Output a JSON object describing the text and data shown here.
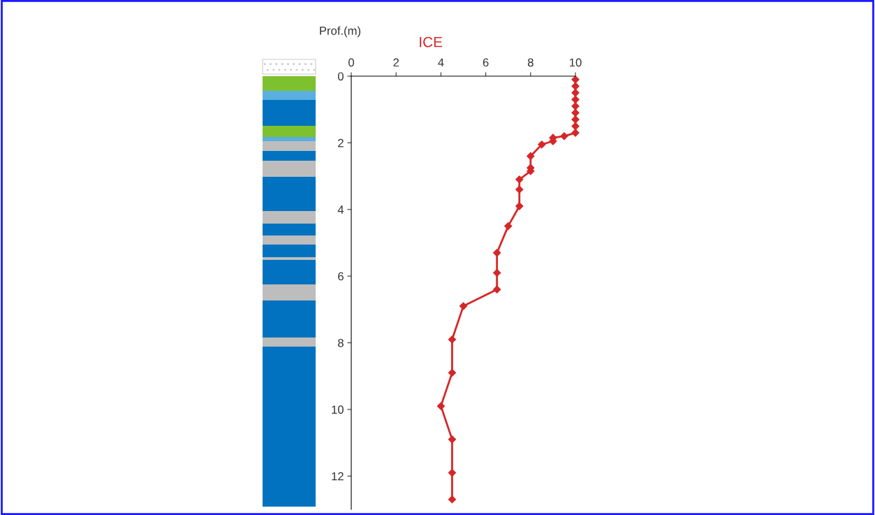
{
  "chart_data": {
    "type": "line",
    "title": "ICE",
    "ylabel": "Prof.(m)",
    "xlim": [
      0,
      10
    ],
    "xticks": [
      0,
      2,
      4,
      6,
      8,
      10
    ],
    "ylim": [
      13,
      0
    ],
    "yticks": [
      0,
      2,
      4,
      6,
      8,
      10,
      12
    ],
    "marker": "diamond",
    "line_style": "solid",
    "grid": false,
    "legend": false,
    "series": [
      {
        "color": "#d62728",
        "x": [
          10,
          10,
          10,
          10,
          10,
          10,
          10,
          10,
          10,
          9.5,
          9.0,
          9.0,
          8.5,
          8.0,
          8.0,
          8.0,
          7.5,
          7.5,
          7.5,
          7.0,
          6.5,
          6.5,
          6.5,
          5.0,
          4.5,
          4.5,
          4.0,
          4.5,
          4.5,
          4.5
        ],
        "values": [
          0.1,
          0.3,
          0.5,
          0.7,
          0.9,
          1.1,
          1.3,
          1.5,
          1.7,
          1.8,
          1.85,
          1.95,
          2.05,
          2.4,
          2.75,
          2.85,
          3.1,
          3.4,
          3.9,
          4.5,
          5.3,
          5.9,
          6.4,
          6.9,
          7.9,
          8.9,
          9.9,
          10.9,
          11.9,
          12.7
        ]
      }
    ]
  }
}
